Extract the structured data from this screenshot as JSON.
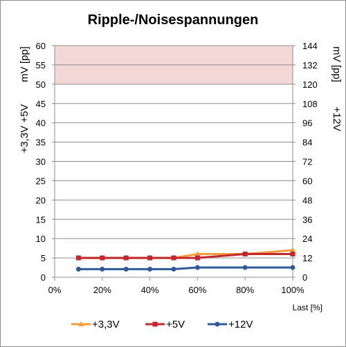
{
  "chart_data": {
    "type": "line",
    "title": "Ripple-/Noisespannungen",
    "xlabel": "Last [%]",
    "ylabel_left_top": "mV [pp]",
    "ylabel_left_bottom": "+3,3V +5V",
    "ylabel_right_top": "mV [pp]",
    "ylabel_right_bottom": "+12V",
    "x_ticks": [
      "0%",
      "20%",
      "40%",
      "60%",
      "80%",
      "100%"
    ],
    "xlim": [
      0,
      100
    ],
    "y_left_ticks": [
      "0",
      "5",
      "10",
      "15",
      "20",
      "25",
      "30",
      "35",
      "40",
      "45",
      "50",
      "55",
      "60"
    ],
    "ylim_left": [
      0,
      60
    ],
    "y_right_ticks": [
      "0",
      "12",
      "24",
      "36",
      "48",
      "60",
      "72",
      "84",
      "96",
      "108",
      "120",
      "132",
      "144"
    ],
    "ylim_right": [
      0,
      144
    ],
    "limit_band_left": [
      50,
      60
    ],
    "limit_band_color": "#f4d7d7",
    "grid": true,
    "legend_position": "bottom",
    "x": [
      10,
      20,
      30,
      40,
      50,
      60,
      80,
      100
    ],
    "series": [
      {
        "name": "+3,3V",
        "axis": "left",
        "color": "#f79a3c",
        "marker": "triangle",
        "values": [
          5,
          5,
          5,
          5,
          5,
          6,
          6,
          7
        ]
      },
      {
        "name": "+5V",
        "axis": "left",
        "color": "#c0282d",
        "marker": "square",
        "values": [
          5,
          5,
          5,
          5,
          5,
          5,
          6,
          6
        ]
      },
      {
        "name": "+12V",
        "axis": "right",
        "color": "#2e5a97",
        "marker": "circle",
        "values": [
          5,
          5,
          5,
          5,
          5,
          6,
          6,
          6
        ]
      }
    ]
  }
}
